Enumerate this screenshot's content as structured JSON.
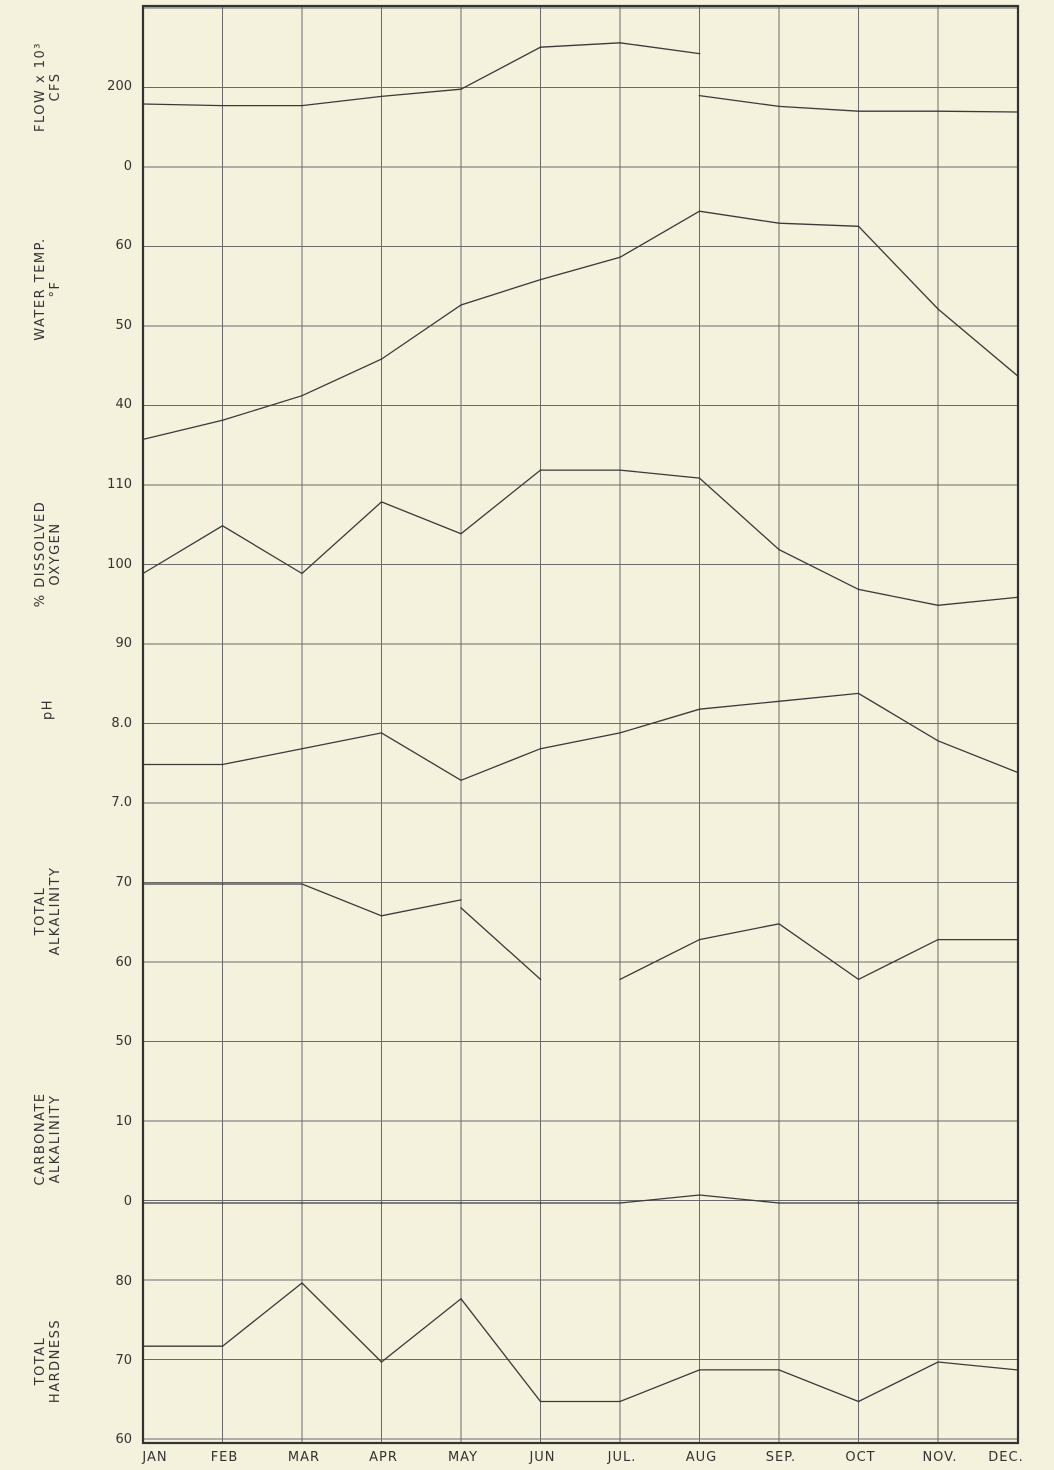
{
  "chart_data": {
    "type": "line",
    "categories": [
      "JAN",
      "FEB",
      "MAR",
      "APR",
      "MAY",
      "JUN",
      "JUL.",
      "AUG",
      "SEP.",
      "OCT",
      "NOV.",
      "DEC."
    ],
    "grid": true,
    "panels": [
      {
        "id": "flow",
        "label_lines": [
          "FLOW x 10³",
          "CFS"
        ],
        "ticks": [
          {
            "text": "200",
            "value": 200
          },
          {
            "text": "0",
            "value": 0
          }
        ],
        "series": [
          {
            "values": [
              160,
              156,
              156,
              179,
              197,
              null,
              null,
              181,
              154,
              142,
              142,
              140
            ]
          },
          {
            "values": [
              null,
              null,
              null,
              null,
              197,
              302,
              313,
              286,
              null,
              null,
              null,
              null
            ]
          }
        ]
      },
      {
        "id": "temp",
        "label_lines": [
          "WATER TEMP.",
          "°F"
        ],
        "ticks": [
          {
            "text": "60",
            "value": 60
          },
          {
            "text": "50",
            "value": 50
          },
          {
            "text": "40",
            "value": 40
          }
        ],
        "series": [
          {
            "values": [
              35.8,
              38.2,
              41.3,
              45.9,
              52.7,
              55.9,
              58.7,
              64.5,
              63.0,
              62.6,
              52.2,
              43.8
            ]
          }
        ]
      },
      {
        "id": "do",
        "label_lines": [
          "% DISSOLVED",
          "OXYGEN"
        ],
        "ticks": [
          {
            "text": "110",
            "value": 110
          },
          {
            "text": "100",
            "value": 100
          },
          {
            "text": "90",
            "value": 90
          }
        ],
        "series": [
          {
            "values": [
              99,
              105,
              99,
              108,
              104,
              112,
              112,
              111,
              102,
              97,
              95,
              96
            ]
          }
        ]
      },
      {
        "id": "ph",
        "label_lines": [
          "pH"
        ],
        "ticks": [
          {
            "text": "8.0",
            "value": 8.0
          },
          {
            "text": "7.0",
            "value": 7.0
          }
        ],
        "series": [
          {
            "values": [
              7.5,
              7.5,
              7.7,
              7.9,
              7.3,
              7.7,
              7.9,
              8.2,
              8.3,
              8.4,
              7.8,
              7.4
            ]
          }
        ]
      },
      {
        "id": "talk",
        "label_lines": [
          "TOTAL",
          "ALKALINITY"
        ],
        "ticks": [
          {
            "text": "70",
            "value": 70
          },
          {
            "text": "60",
            "value": 60
          },
          {
            "text": "50",
            "value": 50
          }
        ],
        "series": [
          {
            "values": [
              70,
              70,
              70,
              66,
              68,
              null,
              58,
              63,
              65,
              58,
              63,
              63
            ]
          },
          {
            "values": [
              null,
              null,
              null,
              null,
              67,
              58,
              null,
              null,
              null,
              null,
              null,
              null
            ]
          }
        ]
      },
      {
        "id": "calk",
        "label_lines": [
          "CARBONATE",
          "ALKALINITY"
        ],
        "ticks": [
          {
            "text": "10",
            "value": 10
          },
          {
            "text": "0",
            "value": 0
          }
        ],
        "series": [
          {
            "values": [
              0,
              0,
              0,
              0,
              0,
              0,
              0,
              1,
              0,
              0,
              0,
              0
            ]
          }
        ]
      },
      {
        "id": "hard",
        "label_lines": [
          "TOTAL",
          "HARDNESS"
        ],
        "ticks": [
          {
            "text": "80",
            "value": 80
          },
          {
            "text": "70",
            "value": 70
          },
          {
            "text": "60",
            "value": 60
          }
        ],
        "series": [
          {
            "values": [
              72,
              72,
              80,
              70,
              78,
              65,
              65,
              69,
              69,
              65,
              70,
              69
            ]
          }
        ]
      }
    ]
  }
}
